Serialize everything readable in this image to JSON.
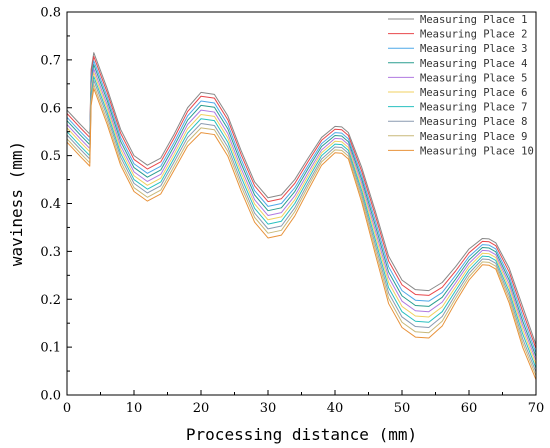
{
  "chart_data": {
    "type": "line",
    "title": "",
    "xlabel": "Processing distance (mm)",
    "ylabel": "waviness (mm)",
    "xlim": [
      0,
      70
    ],
    "ylim": [
      0.0,
      0.8
    ],
    "x_ticks": [
      "0",
      "10",
      "20",
      "30",
      "40",
      "50",
      "60",
      "70"
    ],
    "y_ticks": [
      "0.0",
      "0.1",
      "0.2",
      "0.3",
      "0.4",
      "0.5",
      "0.6",
      "0.7",
      "0.8"
    ],
    "grid": false,
    "legend_position": "top-right",
    "x": [
      0,
      2,
      3.4,
      3.6,
      4,
      6,
      8,
      10,
      12,
      14,
      16,
      18,
      20,
      22,
      24,
      26,
      28,
      30,
      32,
      34,
      36,
      38,
      40,
      41,
      42,
      44,
      46,
      48,
      50,
      52,
      54,
      56,
      58,
      60,
      62,
      63,
      64,
      66,
      68,
      70
    ],
    "series": [
      {
        "name": "Measuring Place 1",
        "color": "#888888",
        "values": [
          0.595,
          0.565,
          0.545,
          0.68,
          0.715,
          0.64,
          0.555,
          0.5,
          0.48,
          0.495,
          0.545,
          0.6,
          0.632,
          0.628,
          0.583,
          0.51,
          0.445,
          0.412,
          0.418,
          0.45,
          0.495,
          0.538,
          0.561,
          0.56,
          0.548,
          0.475,
          0.385,
          0.29,
          0.24,
          0.22,
          0.218,
          0.235,
          0.268,
          0.305,
          0.327,
          0.326,
          0.318,
          0.265,
          0.185,
          0.105
        ]
      },
      {
        "name": "Measuring Place 2",
        "color": "#e8474b",
        "values": [
          0.588,
          0.558,
          0.538,
          0.672,
          0.707,
          0.632,
          0.547,
          0.492,
          0.472,
          0.487,
          0.537,
          0.592,
          0.624,
          0.62,
          0.575,
          0.502,
          0.437,
          0.404,
          0.41,
          0.442,
          0.488,
          0.532,
          0.555,
          0.554,
          0.542,
          0.467,
          0.376,
          0.28,
          0.23,
          0.21,
          0.208,
          0.225,
          0.259,
          0.297,
          0.321,
          0.32,
          0.312,
          0.257,
          0.175,
          0.097
        ]
      },
      {
        "name": "Measuring Place 3",
        "color": "#4fa8e8",
        "values": [
          0.58,
          0.55,
          0.53,
          0.663,
          0.698,
          0.623,
          0.538,
          0.483,
          0.463,
          0.478,
          0.528,
          0.583,
          0.614,
          0.61,
          0.565,
          0.492,
          0.427,
          0.394,
          0.4,
          0.433,
          0.48,
          0.525,
          0.548,
          0.547,
          0.535,
          0.458,
          0.365,
          0.268,
          0.218,
          0.198,
          0.196,
          0.214,
          0.25,
          0.289,
          0.314,
          0.313,
          0.305,
          0.248,
          0.165,
          0.088
        ]
      },
      {
        "name": "Measuring Place 4",
        "color": "#2a9d8f",
        "values": [
          0.573,
          0.543,
          0.523,
          0.655,
          0.69,
          0.615,
          0.53,
          0.475,
          0.455,
          0.47,
          0.52,
          0.574,
          0.605,
          0.601,
          0.556,
          0.483,
          0.418,
          0.385,
          0.391,
          0.425,
          0.473,
          0.519,
          0.542,
          0.541,
          0.529,
          0.45,
          0.355,
          0.257,
          0.207,
          0.187,
          0.185,
          0.204,
          0.242,
          0.282,
          0.308,
          0.307,
          0.299,
          0.24,
          0.155,
          0.08
        ]
      },
      {
        "name": "Measuring Place 5",
        "color": "#b07ae0",
        "values": [
          0.565,
          0.535,
          0.515,
          0.646,
          0.681,
          0.606,
          0.521,
          0.466,
          0.446,
          0.461,
          0.511,
          0.565,
          0.595,
          0.591,
          0.546,
          0.473,
          0.408,
          0.375,
          0.381,
          0.416,
          0.465,
          0.512,
          0.536,
          0.535,
          0.523,
          0.442,
          0.345,
          0.246,
          0.196,
          0.176,
          0.174,
          0.194,
          0.234,
          0.275,
          0.302,
          0.301,
          0.293,
          0.232,
          0.146,
          0.072
        ]
      },
      {
        "name": "Measuring Place 6",
        "color": "#f0d060",
        "values": [
          0.558,
          0.528,
          0.508,
          0.638,
          0.673,
          0.598,
          0.513,
          0.458,
          0.438,
          0.453,
          0.503,
          0.556,
          0.586,
          0.582,
          0.537,
          0.464,
          0.399,
          0.366,
          0.372,
          0.408,
          0.458,
          0.506,
          0.53,
          0.529,
          0.517,
          0.434,
          0.335,
          0.235,
          0.185,
          0.165,
          0.163,
          0.184,
          0.226,
          0.268,
          0.296,
          0.295,
          0.287,
          0.224,
          0.137,
          0.064
        ]
      },
      {
        "name": "Measuring Place 7",
        "color": "#28c0c0",
        "values": [
          0.55,
          0.52,
          0.5,
          0.63,
          0.665,
          0.59,
          0.505,
          0.45,
          0.43,
          0.445,
          0.495,
          0.547,
          0.577,
          0.573,
          0.528,
          0.455,
          0.39,
          0.357,
          0.363,
          0.4,
          0.451,
          0.5,
          0.524,
          0.523,
          0.511,
          0.426,
          0.325,
          0.224,
          0.174,
          0.154,
          0.152,
          0.174,
          0.218,
          0.261,
          0.29,
          0.289,
          0.281,
          0.216,
          0.128,
          0.056
        ]
      },
      {
        "name": "Measuring Place 8",
        "color": "#8a9ab0",
        "values": [
          0.543,
          0.513,
          0.493,
          0.622,
          0.657,
          0.582,
          0.497,
          0.442,
          0.422,
          0.437,
          0.487,
          0.538,
          0.567,
          0.563,
          0.518,
          0.445,
          0.38,
          0.347,
          0.353,
          0.391,
          0.443,
          0.493,
          0.518,
          0.517,
          0.505,
          0.418,
          0.315,
          0.213,
          0.163,
          0.143,
          0.141,
          0.164,
          0.21,
          0.254,
          0.284,
          0.283,
          0.275,
          0.208,
          0.118,
          0.048
        ]
      },
      {
        "name": "Measuring Place 9",
        "color": "#c8b878",
        "values": [
          0.535,
          0.505,
          0.485,
          0.613,
          0.648,
          0.573,
          0.488,
          0.433,
          0.413,
          0.428,
          0.478,
          0.529,
          0.558,
          0.554,
          0.509,
          0.436,
          0.371,
          0.338,
          0.344,
          0.383,
          0.436,
          0.487,
          0.512,
          0.511,
          0.499,
          0.41,
          0.305,
          0.202,
          0.152,
          0.132,
          0.13,
          0.154,
          0.202,
          0.247,
          0.278,
          0.277,
          0.269,
          0.2,
          0.109,
          0.04
        ]
      },
      {
        "name": "Measuring Place 10",
        "color": "#e8923a",
        "values": [
          0.528,
          0.498,
          0.478,
          0.605,
          0.64,
          0.565,
          0.48,
          0.425,
          0.405,
          0.42,
          0.47,
          0.52,
          0.548,
          0.544,
          0.499,
          0.426,
          0.361,
          0.328,
          0.334,
          0.374,
          0.428,
          0.48,
          0.506,
          0.505,
          0.493,
          0.402,
          0.295,
          0.191,
          0.141,
          0.121,
          0.119,
          0.144,
          0.194,
          0.24,
          0.272,
          0.271,
          0.263,
          0.192,
          0.1,
          0.032
        ]
      }
    ]
  }
}
